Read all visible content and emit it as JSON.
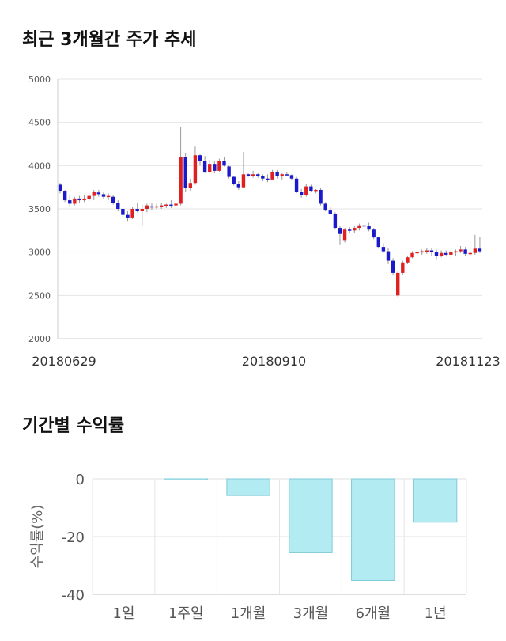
{
  "section1": {
    "title": "최근 3개월간 주가 추세"
  },
  "section2": {
    "title": "기간별 수익률"
  },
  "chart_data": [
    {
      "type": "candlestick",
      "ylim": [
        2000,
        5000
      ],
      "yticks": [
        2000,
        2500,
        3000,
        3500,
        4000,
        4500,
        5000
      ],
      "xticks": [
        "20180629",
        "20180910",
        "20181123"
      ],
      "grid": true,
      "colors": {
        "up": "#e02020",
        "down": "#1a1acc",
        "wick": "#999999"
      },
      "candles": [
        [
          3780,
          3800,
          3680,
          3710
        ],
        [
          3710,
          3720,
          3580,
          3600
        ],
        [
          3600,
          3660,
          3520,
          3560
        ],
        [
          3560,
          3640,
          3540,
          3620
        ],
        [
          3620,
          3650,
          3570,
          3600
        ],
        [
          3600,
          3660,
          3580,
          3620
        ],
        [
          3610,
          3680,
          3590,
          3650
        ],
        [
          3650,
          3720,
          3600,
          3700
        ],
        [
          3690,
          3720,
          3640,
          3670
        ],
        [
          3670,
          3700,
          3610,
          3640
        ],
        [
          3640,
          3680,
          3600,
          3650
        ],
        [
          3640,
          3660,
          3550,
          3570
        ],
        [
          3570,
          3600,
          3480,
          3500
        ],
        [
          3500,
          3520,
          3410,
          3430
        ],
        [
          3430,
          3480,
          3360,
          3400
        ],
        [
          3400,
          3520,
          3380,
          3500
        ],
        [
          3500,
          3570,
          3460,
          3480
        ],
        [
          3480,
          3550,
          3310,
          3500
        ],
        [
          3500,
          3560,
          3460,
          3540
        ],
        [
          3530,
          3570,
          3490,
          3520
        ],
        [
          3520,
          3560,
          3500,
          3530
        ],
        [
          3530,
          3570,
          3500,
          3540
        ],
        [
          3540,
          3560,
          3510,
          3550
        ],
        [
          3550,
          3600,
          3510,
          3540
        ],
        [
          3540,
          3580,
          3500,
          3560
        ],
        [
          3560,
          4450,
          3540,
          4100
        ],
        [
          4100,
          4150,
          3700,
          3740
        ],
        [
          3740,
          3850,
          3710,
          3800
        ],
        [
          3800,
          4220,
          3780,
          4120
        ],
        [
          4120,
          4130,
          4000,
          4050
        ],
        [
          4050,
          4110,
          3920,
          3930
        ],
        [
          3930,
          4070,
          3910,
          4020
        ],
        [
          4020,
          4050,
          3920,
          3940
        ],
        [
          3940,
          4080,
          3930,
          4050
        ],
        [
          4050,
          4100,
          3990,
          4000
        ],
        [
          3990,
          4000,
          3850,
          3870
        ],
        [
          3870,
          3880,
          3770,
          3790
        ],
        [
          3790,
          3820,
          3720,
          3750
        ],
        [
          3750,
          4160,
          3740,
          3900
        ],
        [
          3900,
          3920,
          3870,
          3880
        ],
        [
          3880,
          3940,
          3860,
          3900
        ],
        [
          3900,
          3920,
          3860,
          3880
        ],
        [
          3880,
          3900,
          3820,
          3850
        ],
        [
          3850,
          3900,
          3810,
          3840
        ],
        [
          3840,
          3950,
          3830,
          3930
        ],
        [
          3930,
          3950,
          3850,
          3880
        ],
        [
          3880,
          3920,
          3840,
          3900
        ],
        [
          3900,
          3930,
          3880,
          3890
        ],
        [
          3890,
          3900,
          3830,
          3850
        ],
        [
          3850,
          3870,
          3680,
          3700
        ],
        [
          3700,
          3730,
          3630,
          3660
        ],
        [
          3660,
          3790,
          3640,
          3760
        ],
        [
          3760,
          3780,
          3700,
          3710
        ],
        [
          3710,
          3730,
          3680,
          3720
        ],
        [
          3720,
          3740,
          3540,
          3560
        ],
        [
          3560,
          3580,
          3470,
          3490
        ],
        [
          3490,
          3520,
          3430,
          3440
        ],
        [
          3440,
          3460,
          3260,
          3280
        ],
        [
          3280,
          3300,
          3090,
          3210
        ],
        [
          3140,
          3280,
          3110,
          3260
        ],
        [
          3260,
          3290,
          3220,
          3250
        ],
        [
          3250,
          3300,
          3220,
          3280
        ],
        [
          3280,
          3330,
          3250,
          3310
        ],
        [
          3310,
          3350,
          3270,
          3300
        ],
        [
          3300,
          3340,
          3240,
          3260
        ],
        [
          3260,
          3280,
          3150,
          3170
        ],
        [
          3170,
          3180,
          3040,
          3060
        ],
        [
          3060,
          3100,
          2990,
          3010
        ],
        [
          3010,
          3050,
          2870,
          2900
        ],
        [
          2900,
          2930,
          2730,
          2760
        ],
        [
          2500,
          2780,
          2480,
          2760
        ],
        [
          2760,
          2900,
          2740,
          2880
        ],
        [
          2880,
          2960,
          2860,
          2940
        ],
        [
          2940,
          3010,
          2930,
          2990
        ],
        [
          2990,
          3020,
          2950,
          3000
        ],
        [
          3000,
          3030,
          2970,
          3010
        ],
        [
          3000,
          3050,
          2980,
          3020
        ],
        [
          3020,
          3050,
          2950,
          3000
        ],
        [
          3000,
          3030,
          2920,
          2960
        ],
        [
          2960,
          3020,
          2940,
          2990
        ],
        [
          2990,
          3020,
          2950,
          2970
        ],
        [
          2970,
          3020,
          2940,
          3000
        ],
        [
          3000,
          3030,
          2960,
          3010
        ],
        [
          3010,
          3070,
          2990,
          3030
        ],
        [
          3030,
          3060,
          2960,
          2980
        ],
        [
          2980,
          3010,
          2950,
          2990
        ],
        [
          2990,
          3200,
          2970,
          3040
        ],
        [
          3040,
          3180,
          2990,
          3010
        ]
      ]
    },
    {
      "type": "bar",
      "ylabel": "수익률(%)",
      "ylim": [
        -40,
        0
      ],
      "yticks": [
        0,
        -20,
        -40
      ],
      "categories": [
        "1일",
        "1주일",
        "1개월",
        "3개월",
        "6개월",
        "1년"
      ],
      "values": [
        0,
        -0.4,
        -5.8,
        -25.6,
        -35.2,
        -15.0
      ],
      "colors": {
        "fill": "#b2ebf2",
        "stroke": "#80cbd8"
      }
    }
  ]
}
